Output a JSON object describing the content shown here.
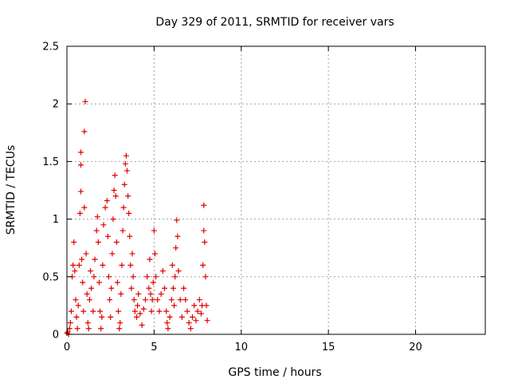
{
  "chart_data": {
    "type": "scatter",
    "title": "Day 329 of 2011, SRMTID for receiver vars",
    "xlabel": "GPS time / hours",
    "ylabel": "SRMTID / TECUs",
    "xlim": [
      0,
      24
    ],
    "ylim": [
      0,
      2.5
    ],
    "xticks": [
      0,
      5,
      10,
      15,
      20
    ],
    "yticks": [
      0,
      0.5,
      1,
      1.5,
      2,
      2.5
    ],
    "xtick_labels": [
      "0",
      "5",
      "10",
      "15",
      "20"
    ],
    "ytick_labels": [
      "0",
      "0.5",
      "1",
      "1.5",
      "2",
      "2.5"
    ],
    "grid": true,
    "legend": "none",
    "marker": "plus",
    "color": "#e00000",
    "series": [
      {
        "values": [
          [
            0.0,
            0.01
          ],
          [
            0.05,
            0.02
          ],
          [
            0.1,
            0.0
          ],
          [
            0.15,
            0.05
          ],
          [
            0.2,
            0.1
          ],
          [
            0.25,
            0.2
          ],
          [
            0.3,
            0.5
          ],
          [
            0.35,
            0.6
          ],
          [
            0.4,
            0.8
          ],
          [
            0.45,
            0.55
          ],
          [
            0.5,
            0.3
          ],
          [
            0.55,
            0.15
          ],
          [
            0.6,
            0.05
          ],
          [
            0.65,
            0.25
          ],
          [
            0.7,
            0.6
          ],
          [
            0.75,
            1.05
          ],
          [
            0.8,
            1.24
          ],
          [
            0.8,
            1.47
          ],
          [
            0.8,
            1.58
          ],
          [
            0.85,
            0.65
          ],
          [
            0.9,
            0.45
          ],
          [
            0.95,
            0.2
          ],
          [
            1.0,
            1.1
          ],
          [
            1.0,
            1.76
          ],
          [
            1.05,
            2.02
          ],
          [
            1.1,
            0.7
          ],
          [
            1.15,
            0.35
          ],
          [
            1.2,
            0.1
          ],
          [
            1.25,
            0.05
          ],
          [
            1.3,
            0.3
          ],
          [
            1.35,
            0.55
          ],
          [
            1.4,
            0.4
          ],
          [
            1.5,
            0.2
          ],
          [
            1.55,
            0.5
          ],
          [
            1.6,
            0.65
          ],
          [
            1.7,
            0.9
          ],
          [
            1.75,
            1.02
          ],
          [
            1.8,
            0.8
          ],
          [
            1.85,
            0.45
          ],
          [
            1.9,
            0.2
          ],
          [
            1.95,
            0.05
          ],
          [
            2.0,
            0.15
          ],
          [
            2.05,
            0.6
          ],
          [
            2.1,
            0.95
          ],
          [
            2.2,
            1.1
          ],
          [
            2.3,
            1.16
          ],
          [
            2.35,
            0.85
          ],
          [
            2.4,
            0.5
          ],
          [
            2.45,
            0.3
          ],
          [
            2.5,
            0.15
          ],
          [
            2.55,
            0.4
          ],
          [
            2.6,
            0.7
          ],
          [
            2.65,
            1.0
          ],
          [
            2.7,
            1.25
          ],
          [
            2.75,
            1.38
          ],
          [
            2.8,
            1.2
          ],
          [
            2.85,
            0.8
          ],
          [
            2.9,
            0.45
          ],
          [
            2.95,
            0.2
          ],
          [
            3.0,
            0.05
          ],
          [
            3.05,
            0.1
          ],
          [
            3.1,
            0.35
          ],
          [
            3.15,
            0.6
          ],
          [
            3.2,
            0.9
          ],
          [
            3.25,
            1.1
          ],
          [
            3.3,
            1.3
          ],
          [
            3.35,
            1.48
          ],
          [
            3.4,
            1.55
          ],
          [
            3.45,
            1.42
          ],
          [
            3.5,
            1.2
          ],
          [
            3.55,
            1.05
          ],
          [
            3.6,
            0.85
          ],
          [
            3.65,
            0.6
          ],
          [
            3.7,
            0.4
          ],
          [
            3.75,
            0.7
          ],
          [
            3.8,
            0.5
          ],
          [
            3.85,
            0.3
          ],
          [
            3.9,
            0.2
          ],
          [
            4.0,
            0.15
          ],
          [
            4.05,
            0.25
          ],
          [
            4.1,
            0.35
          ],
          [
            4.2,
            0.18
          ],
          [
            4.3,
            0.08
          ],
          [
            4.4,
            0.22
          ],
          [
            4.5,
            0.3
          ],
          [
            4.6,
            0.5
          ],
          [
            4.7,
            0.4
          ],
          [
            4.75,
            0.65
          ],
          [
            4.8,
            0.35
          ],
          [
            4.85,
            0.2
          ],
          [
            4.9,
            0.3
          ],
          [
            4.95,
            0.45
          ],
          [
            5.0,
            0.9
          ],
          [
            5.05,
            0.7
          ],
          [
            5.1,
            0.5
          ],
          [
            5.2,
            0.3
          ],
          [
            5.3,
            0.2
          ],
          [
            5.4,
            0.35
          ],
          [
            5.5,
            0.55
          ],
          [
            5.6,
            0.4
          ],
          [
            5.7,
            0.2
          ],
          [
            5.75,
            0.1
          ],
          [
            5.8,
            0.05
          ],
          [
            5.9,
            0.15
          ],
          [
            6.0,
            0.3
          ],
          [
            6.05,
            0.6
          ],
          [
            6.1,
            0.4
          ],
          [
            6.15,
            0.25
          ],
          [
            6.2,
            0.5
          ],
          [
            6.25,
            0.75
          ],
          [
            6.3,
            0.99
          ],
          [
            6.35,
            0.85
          ],
          [
            6.4,
            0.55
          ],
          [
            6.5,
            0.3
          ],
          [
            6.6,
            0.15
          ],
          [
            6.7,
            0.4
          ],
          [
            6.8,
            0.3
          ],
          [
            6.9,
            0.2
          ],
          [
            7.0,
            0.1
          ],
          [
            7.1,
            0.05
          ],
          [
            7.2,
            0.15
          ],
          [
            7.3,
            0.25
          ],
          [
            7.4,
            0.12
          ],
          [
            7.5,
            0.2
          ],
          [
            7.6,
            0.3
          ],
          [
            7.7,
            0.18
          ],
          [
            7.75,
            0.25
          ],
          [
            7.8,
            0.6
          ],
          [
            7.85,
            0.9
          ],
          [
            7.85,
            1.12
          ],
          [
            7.9,
            0.8
          ],
          [
            7.95,
            0.5
          ],
          [
            8.0,
            0.25
          ],
          [
            8.05,
            0.12
          ]
        ]
      }
    ]
  }
}
